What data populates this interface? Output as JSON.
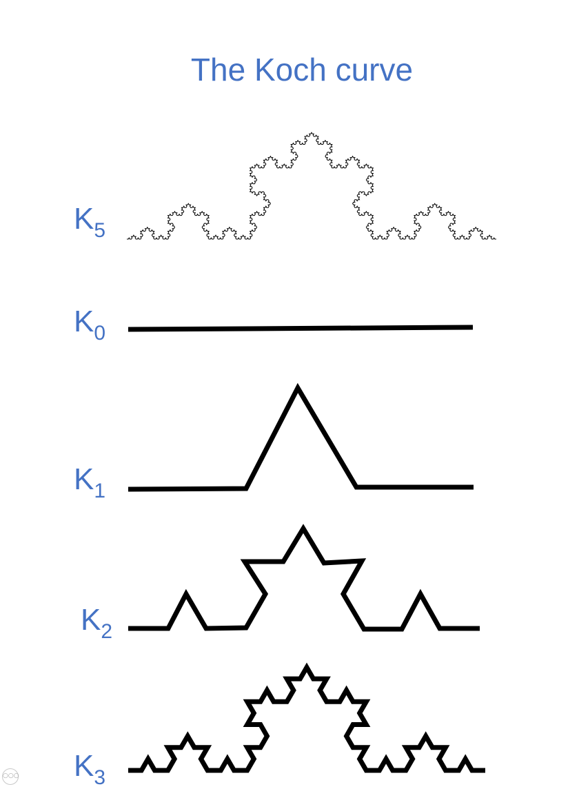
{
  "title": "The Koch curve",
  "labels": [
    {
      "base": "K",
      "sub": "5"
    },
    {
      "base": "K",
      "sub": "0"
    },
    {
      "base": "K",
      "sub": "1"
    },
    {
      "base": "K",
      "sub": "2"
    },
    {
      "base": "K",
      "sub": "3"
    }
  ],
  "colors": {
    "title": "#4472C4",
    "curve": "#000000"
  },
  "icons": {
    "corner": "more-dots-icon"
  }
}
